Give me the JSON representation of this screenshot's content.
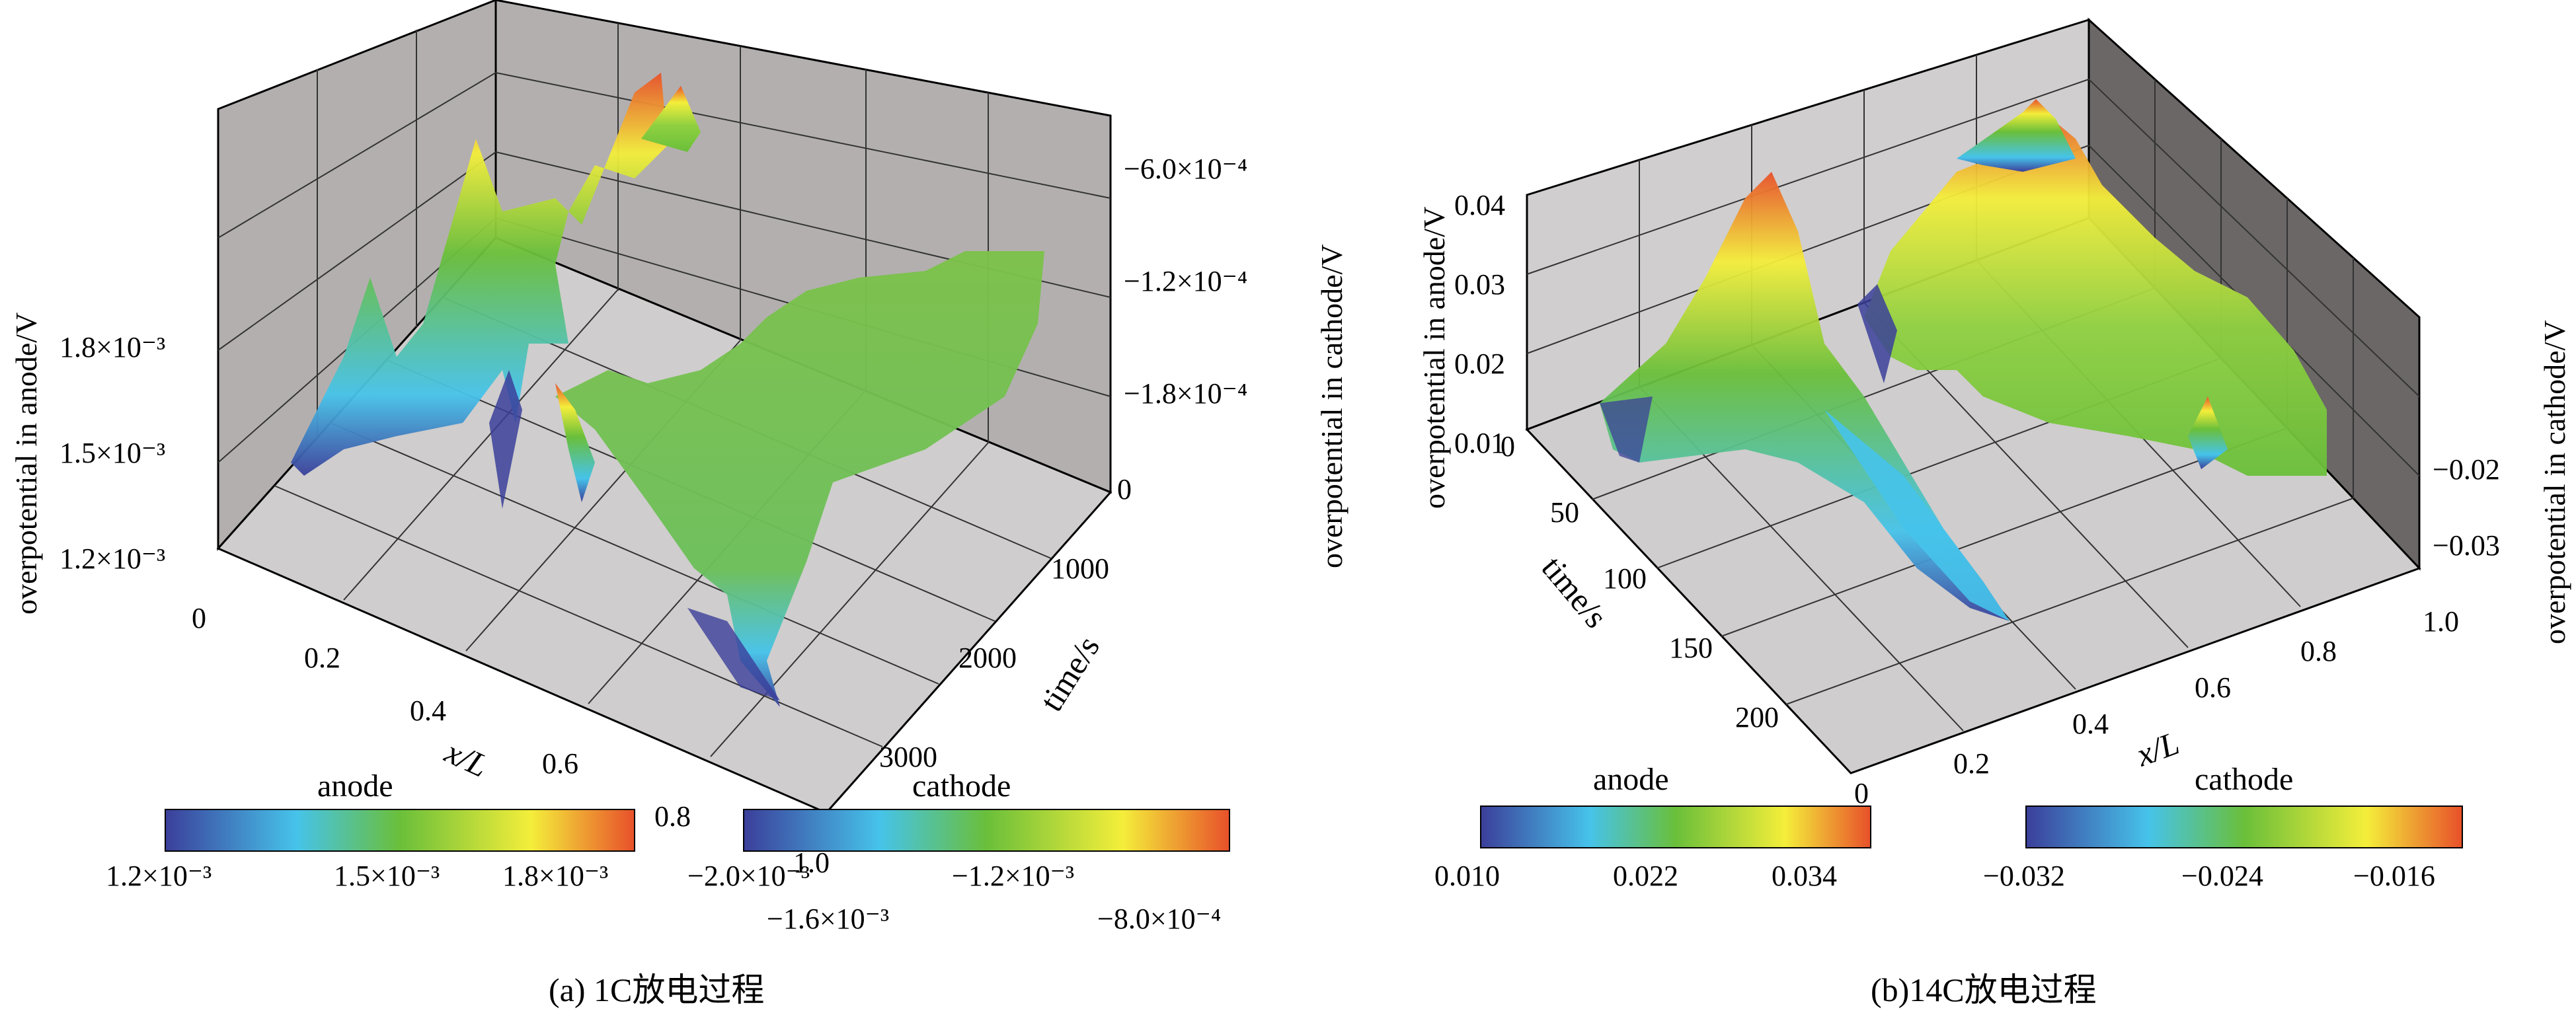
{
  "chart_data": [
    {
      "type": "surface",
      "caption": "(a) 1C放电过程",
      "xlabel": "x/L",
      "ylabel": "time/s",
      "zlabel_left": "overpotential in anode/V",
      "zlabel_right": "overpotential in cathode/V",
      "x_ticks": [
        "0",
        "0.2",
        "0.4",
        "0.6",
        "0.8",
        "1.0"
      ],
      "time_ticks": [
        "0",
        "1000",
        "2000",
        "3000"
      ],
      "anode_z_ticks": [
        "1.2×10⁻³",
        "1.5×10⁻³",
        "1.8×10⁻³"
      ],
      "cathode_z_ticks": [
        "−6.0×10⁻⁴",
        "−1.2×10⁻⁴",
        "−1.8×10⁻⁴"
      ],
      "colorbars": [
        {
          "name": "anode",
          "tick_labels": [
            "1.2×10⁻³",
            "1.5×10⁻³",
            "1.8×10⁻³"
          ]
        },
        {
          "name": "cathode",
          "tick_labels": [
            "−2.0×10⁻³",
            "−1.6×10⁻³",
            "−1.2×10⁻³",
            "−8.0×10⁻⁴"
          ]
        }
      ]
    },
    {
      "type": "surface",
      "caption": "(b)14C放电过程",
      "xlabel": "x/L",
      "ylabel": "time/s",
      "zlabel_left": "overpotential in anode/V",
      "zlabel_right": "overpotential in cathode/V",
      "x_ticks": [
        "0.2",
        "0.4",
        "0.6",
        "0.8",
        "1.0"
      ],
      "time_ticks": [
        "0",
        "50",
        "100",
        "150",
        "200"
      ],
      "x_origin_label": "0",
      "anode_z_ticks": [
        "0.01",
        "0.02",
        "0.03",
        "0.04"
      ],
      "cathode_z_ticks": [
        "−0.02",
        "−0.03"
      ],
      "colorbars": [
        {
          "name": "anode",
          "tick_labels": [
            "0.010",
            "0.022",
            "0.034"
          ]
        },
        {
          "name": "cathode",
          "tick_labels": [
            "−0.032",
            "−0.024",
            "−0.016"
          ]
        }
      ]
    }
  ],
  "colormap": [
    "#3b3f9a",
    "#46c3ea",
    "#6abf3a",
    "#f4ee3a",
    "#e8502a"
  ]
}
